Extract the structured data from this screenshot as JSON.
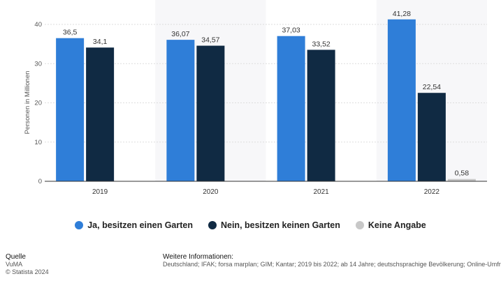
{
  "chart_data": {
    "type": "bar",
    "categories": [
      "2019",
      "2020",
      "2021",
      "2022"
    ],
    "series": [
      {
        "name": "Ja, besitzen einen Garten",
        "color": "#2f7ed8",
        "values": [
          36.5,
          36.07,
          37.03,
          41.28
        ],
        "labels": [
          "36,5",
          "36,07",
          "37,03",
          "41,28"
        ]
      },
      {
        "name": "Nein, besitzen keinen Garten",
        "color": "#102a43",
        "values": [
          34.1,
          34.57,
          33.52,
          22.54
        ],
        "labels": [
          "34,1",
          "34,57",
          "33,52",
          "22,54"
        ]
      },
      {
        "name": "Keine Angabe",
        "color": "#c8c8c8",
        "values": [
          null,
          null,
          null,
          0.58
        ],
        "labels": [
          "",
          "",
          "",
          "0,58"
        ]
      }
    ],
    "ylabel": "Personen in Millionen",
    "ylim": [
      0,
      40
    ],
    "yticks": [
      "0",
      "10",
      "20",
      "30",
      "40"
    ],
    "grid": true,
    "legend_position": "bottom"
  },
  "footer": {
    "source_heading": "Quelle",
    "source_name": "VuMA",
    "copyright": "© Statista 2024",
    "info_heading": "Weitere Informationen:",
    "info_text": "Deutschland; IFAK; forsa marplan; GIM; Kantar; 2019 bis 2022; ab 14 Jahre; deutschsprachige Bevölkerung; Online-Umfrage"
  }
}
